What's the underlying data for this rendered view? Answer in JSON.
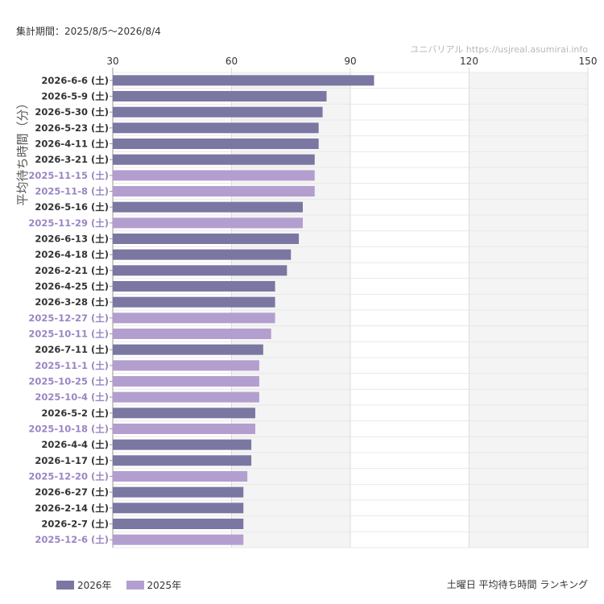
{
  "header": {
    "period": "集計期間：2025/8/5～2026/8/4",
    "source": "ユニバリアル  https://usjreal.asumirai.info"
  },
  "legend": [
    {
      "label": "2026年",
      "color": "#7a77a3"
    },
    {
      "label": "2025年",
      "color": "#b39fcf"
    }
  ],
  "caption": "土曜日 平均待ち時間 ランキング",
  "colors": {
    "bar_2026": "#7a77a3",
    "bar_2025": "#b39fcf",
    "label_2026": "#333333",
    "label_2025": "#9a86c4",
    "band": "#f4f4f4"
  },
  "chart_data": {
    "type": "bar",
    "orientation": "horizontal",
    "ylabel": "平均待ち時間（分）",
    "xlim": [
      30,
      150
    ],
    "xticks": [
      30,
      60,
      90,
      120,
      150
    ],
    "grid": true,
    "legend_position": "bottom-left",
    "categories": [
      "2026-6-6 (土)",
      "2026-5-9 (土)",
      "2026-5-30 (土)",
      "2026-5-23 (土)",
      "2026-4-11 (土)",
      "2026-3-21 (土)",
      "2025-11-15 (土)",
      "2025-11-8 (土)",
      "2026-5-16 (土)",
      "2025-11-29 (土)",
      "2026-6-13 (土)",
      "2026-4-18 (土)",
      "2026-2-21 (土)",
      "2026-4-25 (土)",
      "2026-3-28 (土)",
      "2025-12-27 (土)",
      "2025-10-11 (土)",
      "2026-7-11 (土)",
      "2025-11-1 (土)",
      "2025-10-25 (土)",
      "2025-10-4 (土)",
      "2026-5-2 (土)",
      "2025-10-18 (土)",
      "2026-4-4 (土)",
      "2026-1-17 (土)",
      "2025-12-20 (土)",
      "2026-6-27 (土)",
      "2026-2-14 (土)",
      "2026-2-7 (土)",
      "2025-12-6 (土)"
    ],
    "values": [
      96,
      84,
      83,
      82,
      82,
      81,
      81,
      81,
      78,
      78,
      77,
      75,
      74,
      71,
      71,
      71,
      70,
      68,
      67,
      67,
      67,
      66,
      66,
      65,
      65,
      64,
      63,
      63,
      63,
      63
    ],
    "year": [
      "2026",
      "2026",
      "2026",
      "2026",
      "2026",
      "2026",
      "2025",
      "2025",
      "2026",
      "2025",
      "2026",
      "2026",
      "2026",
      "2026",
      "2026",
      "2025",
      "2025",
      "2026",
      "2025",
      "2025",
      "2025",
      "2026",
      "2025",
      "2026",
      "2026",
      "2025",
      "2026",
      "2026",
      "2026",
      "2025"
    ]
  }
}
